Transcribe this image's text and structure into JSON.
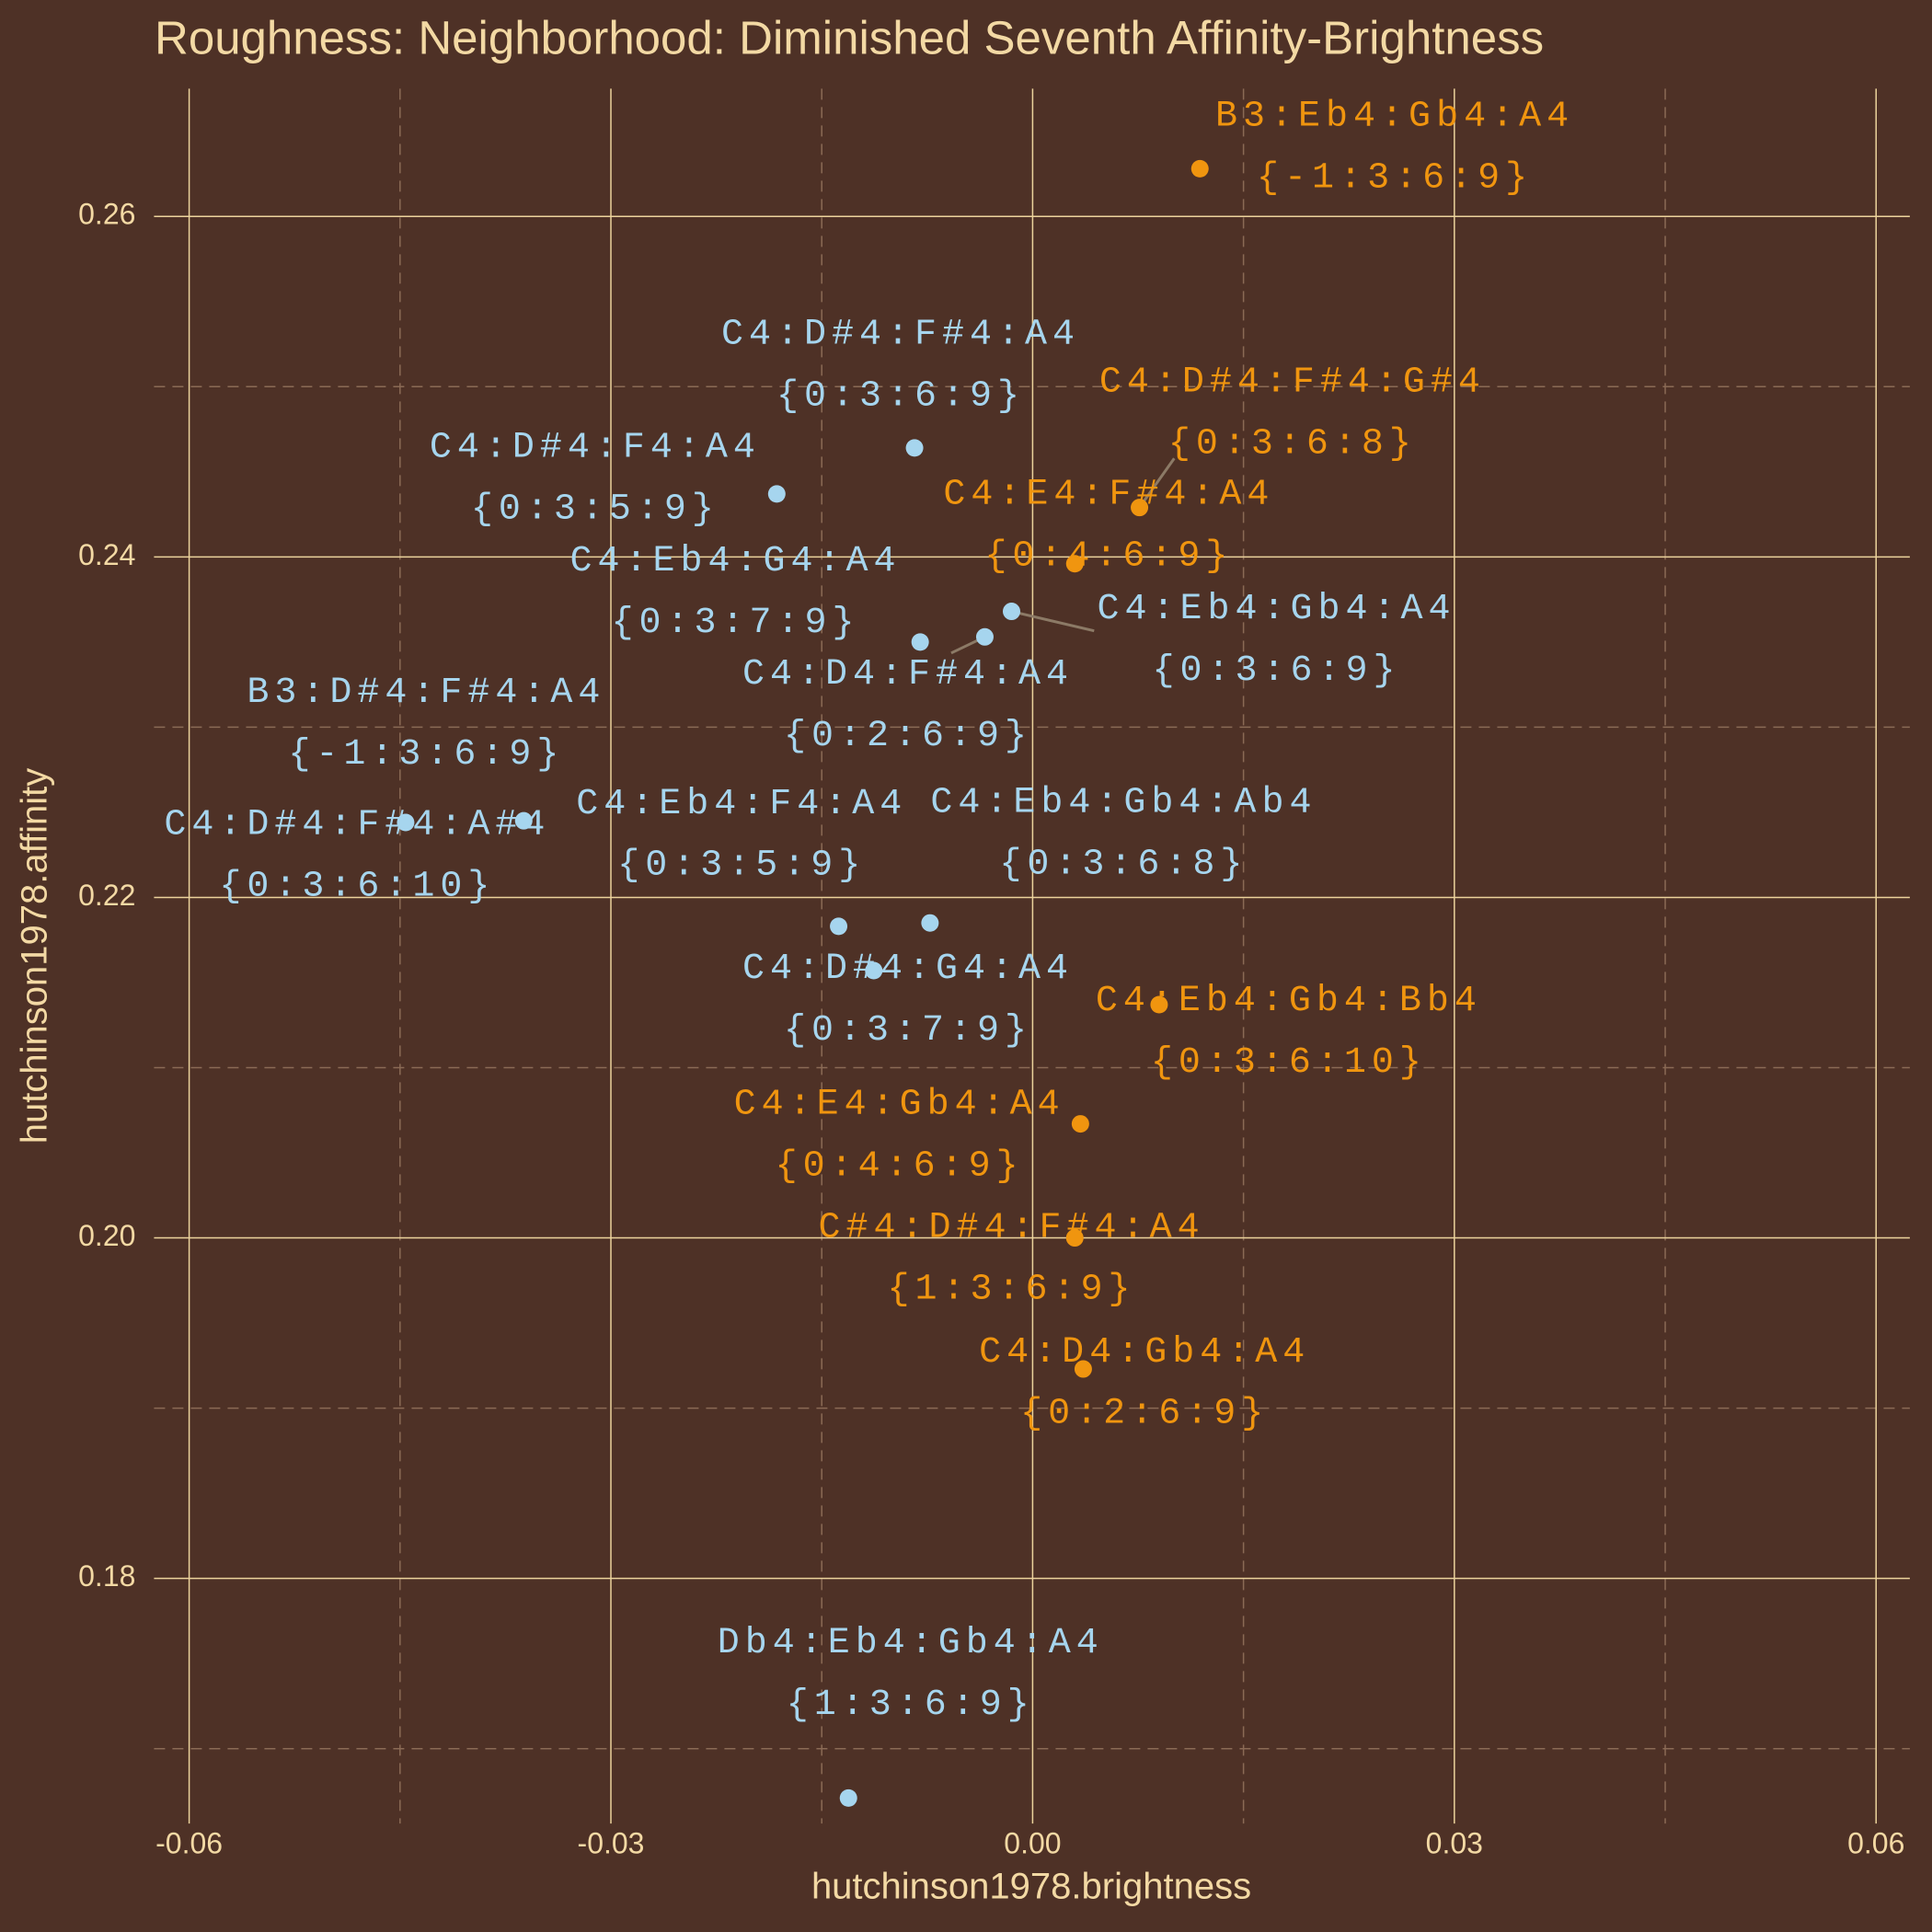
{
  "chart_data": {
    "type": "scatter",
    "title": "Roughness: Neighborhood: Diminished Seventh Affinity-Brightness",
    "x_label": "hutchinson1978.brightness",
    "y_label": "hutchinson1978.affinity",
    "xlim": [
      -0.0625,
      0.0624
    ],
    "ylim": [
      0.1656,
      0.2675
    ],
    "xticks": [
      -0.06,
      -0.03,
      {
        "value": 0,
        "label": "0.00"
      },
      0.03,
      0.06
    ],
    "yticks": [
      0.18,
      {
        "value": 0.2,
        "label": "0.20"
      },
      0.22,
      0.24,
      0.26
    ],
    "x_minor_grid": [
      -0.045,
      -0.015,
      0.015,
      0.045
    ],
    "y_minor_grid": [
      0.17,
      0.19,
      0.21,
      0.23,
      0.25
    ],
    "grid": true,
    "series": [
      {
        "color": "#a6d5ee",
        "x": [
          -0.0084,
          -0.0182,
          -0.008,
          -0.0034,
          -0.0015,
          -0.0362,
          -0.0446,
          -0.0138,
          -0.0073,
          -0.0113,
          -0.0131
        ],
        "values": [
          0.2464,
          0.2437,
          0.235,
          0.2353,
          0.2368,
          0.2245,
          0.2244,
          0.2183,
          0.2185,
          0.2157,
          0.1671
        ],
        "labels": [
          "C4:D#4:F#4:A4",
          "C4:D#4:F4:A4",
          "C4:Eb4:G4:A4",
          "C4:D4:F#4:A4",
          "C4:Eb4:Gb4:A4",
          "B3:D#4:F#4:A4",
          "C4:D#4:F#4:A#4",
          "C4:Eb4:F4:A4",
          "C4:Eb4:Gb4:Ab4",
          "C4:D#4:G4:A4",
          "Db4:Eb4:Gb4:A4"
        ],
        "sublabels": [
          "{0:3:6:9}",
          "{0:3:5:9}",
          "{0:3:7:9}",
          "{0:2:6:9}",
          "{0:3:6:9}",
          "{-1:3:6:9}",
          "{0:3:6:10}",
          "{0:3:5:9}",
          "{0:3:6:8}",
          "{0:3:7:9}",
          "{1:3:6:9}"
        ]
      },
      {
        "color": "#f0950f",
        "x": [
          0.0119,
          0.0076,
          0.003,
          0.009,
          0.0034,
          0.003,
          0.0036
        ],
        "values": [
          0.2628,
          0.2429,
          0.2396,
          0.2137,
          0.2067,
          0.2,
          0.1923
        ],
        "labels": [
          "B3:Eb4:Gb4:A4",
          "C4:D#4:F#4:G#4",
          "C4:E4:F#4:A4",
          "C4:Eb4:Gb4:Bb4",
          "C4:E4:Gb4:A4",
          "C#4:D#4:F#4:A4",
          "C4:D4:Gb4:A4"
        ],
        "sublabels": [
          "{-1:3:6:9}",
          "{0:3:6:8}",
          "{0:4:6:9}",
          "{0:3:6:10}",
          "{0:4:6:9}",
          "{1:3:6:9}",
          "{0:2:6:9}"
        ]
      }
    ]
  }
}
